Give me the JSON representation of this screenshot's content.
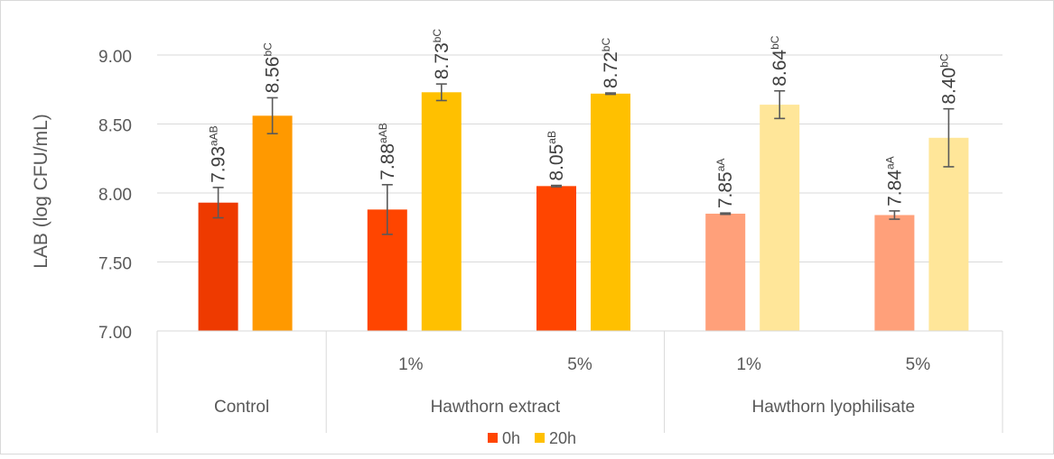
{
  "chart_data": {
    "type": "bar",
    "ylabel": "LAB (log CFU/mL)",
    "ylim": [
      7.0,
      9.0
    ],
    "yticks": [
      "7.00",
      "7.50",
      "8.00",
      "8.50",
      "9.00"
    ],
    "grid": true,
    "legend_position": "bottom",
    "legend": [
      {
        "label": "0h",
        "color": "#FF4500"
      },
      {
        "label": "20h",
        "color": "#FFC000"
      }
    ],
    "group_labels": [
      {
        "label": "Control",
        "span": [
          0,
          0
        ]
      },
      {
        "label": "Hawthorn extract",
        "span": [
          1,
          2
        ]
      },
      {
        "label": "Hawthorn lyophilisate",
        "span": [
          3,
          4
        ]
      }
    ],
    "categories": [
      "",
      "1%",
      "5%",
      "1%",
      "5%"
    ],
    "bars": [
      [
        {
          "series": "0h",
          "value": 7.93,
          "err": 0.11,
          "label": "7.93",
          "sup": "aAB",
          "color": "#EE3A00"
        },
        {
          "series": "20h",
          "value": 8.56,
          "err": 0.13,
          "label": "8.56",
          "sup": "bC",
          "color": "#FF9900"
        }
      ],
      [
        {
          "series": "0h",
          "value": 7.88,
          "err": 0.18,
          "label": "7.88",
          "sup": "aAB",
          "color": "#FF4500"
        },
        {
          "series": "20h",
          "value": 8.73,
          "err": 0.06,
          "label": "8.73",
          "sup": "bC",
          "color": "#FFC000"
        }
      ],
      [
        {
          "series": "0h",
          "value": 8.05,
          "err": 0.005,
          "label": "8.05",
          "sup": "aB",
          "color": "#FF4500"
        },
        {
          "series": "20h",
          "value": 8.72,
          "err": 0.005,
          "label": "8.72",
          "sup": "bC",
          "color": "#FFC000"
        }
      ],
      [
        {
          "series": "0h",
          "value": 7.85,
          "err": 0.005,
          "label": "7.85",
          "sup": "aA",
          "color": "#FFA07A"
        },
        {
          "series": "20h",
          "value": 8.64,
          "err": 0.1,
          "label": "8.64",
          "sup": "bC",
          "color": "#FFE699"
        }
      ],
      [
        {
          "series": "0h",
          "value": 7.84,
          "err": 0.03,
          "label": "7.84",
          "sup": "aA",
          "color": "#FFA07A"
        },
        {
          "series": "20h",
          "value": 8.4,
          "err": 0.21,
          "label": "8.40",
          "sup": "bC",
          "color": "#FFE699"
        }
      ]
    ]
  }
}
